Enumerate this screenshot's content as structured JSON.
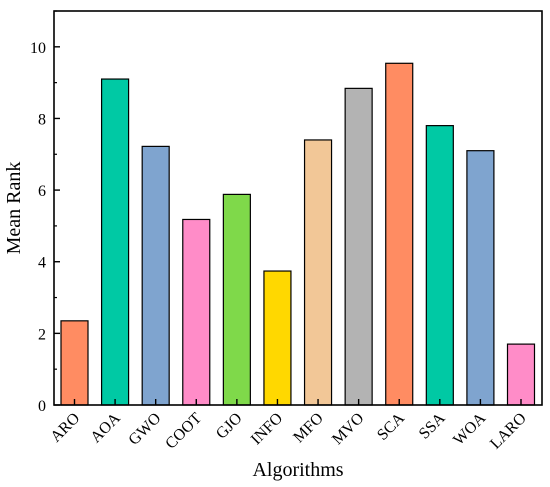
{
  "chart_data": {
    "type": "bar",
    "xlabel": "Algorithms",
    "ylabel": "Mean Rank",
    "ylim": [
      0,
      11
    ],
    "yticks": [
      0,
      2,
      4,
      6,
      8,
      10
    ],
    "categories": [
      "ARO",
      "AOA",
      "GWO",
      "COOT",
      "GJO",
      "INFO",
      "MFO",
      "MVO",
      "SCA",
      "SSA",
      "WOA",
      "LARO"
    ],
    "values": [
      2.35,
      9.1,
      7.22,
      5.18,
      5.88,
      3.74,
      7.4,
      8.84,
      9.54,
      7.8,
      7.1,
      1.7
    ],
    "colors": [
      "#FF8C62",
      "#00C9A4",
      "#7FA4CF",
      "#FF8CC8",
      "#7FD94A",
      "#FFD800",
      "#F2C797",
      "#B3B3B3",
      "#FF8C62",
      "#00C9A4",
      "#7FA4CF",
      "#FF8CC8"
    ],
    "grid": false,
    "legend": "none"
  }
}
